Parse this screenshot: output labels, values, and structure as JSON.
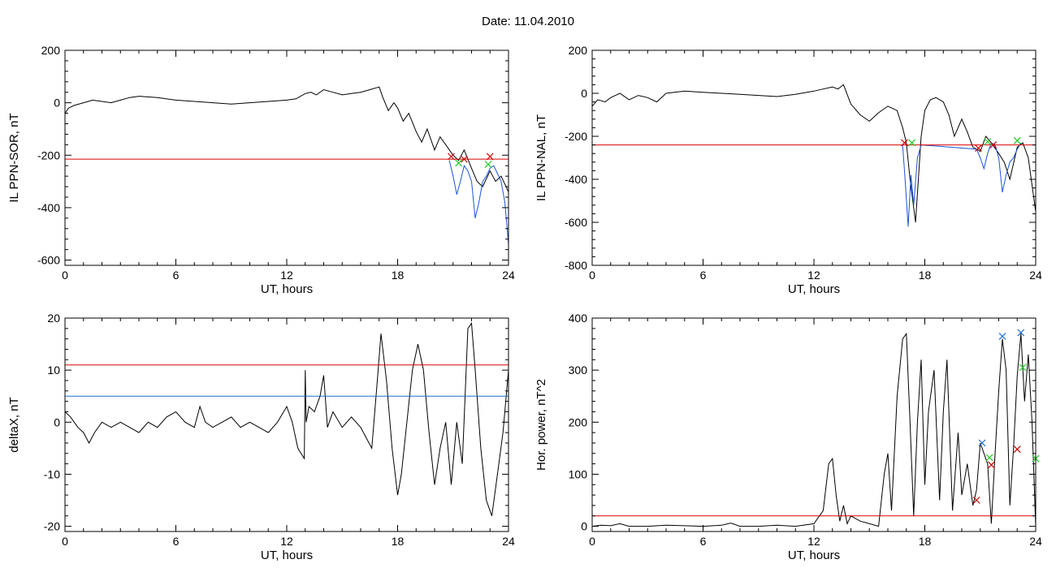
{
  "title": "Date:  11.04.2010",
  "chart_data": [
    {
      "type": "line",
      "xlabel": "UT, hours",
      "ylabel": "IL PPN-SOR, nT",
      "xlim": [
        0,
        24
      ],
      "ylim": [
        -620,
        200
      ],
      "xticks": [
        0,
        6,
        12,
        18,
        24
      ],
      "yticks": [
        -600,
        -400,
        -200,
        0,
        200
      ],
      "series": [
        {
          "color": "#000000",
          "x": [
            0,
            0.2,
            0.5,
            1,
            1.5,
            2,
            2.5,
            3,
            3.5,
            4,
            5,
            6,
            7,
            8,
            9,
            10,
            11,
            12,
            12.5,
            13,
            13.3,
            13.6,
            14,
            14.5,
            15,
            15.5,
            16,
            16.5,
            17,
            17.2,
            17.5,
            17.8,
            18,
            18.3,
            18.6,
            19,
            19.3,
            19.6,
            20,
            20.3,
            20.6,
            21,
            21.3,
            21.6,
            22,
            22.3,
            22.6,
            23,
            23.3,
            23.6,
            24
          ],
          "y": [
            -40,
            -20,
            -10,
            0,
            10,
            5,
            0,
            10,
            20,
            25,
            20,
            10,
            5,
            0,
            -5,
            0,
            5,
            10,
            15,
            35,
            40,
            30,
            50,
            40,
            30,
            35,
            40,
            50,
            60,
            20,
            -30,
            0,
            -20,
            -70,
            -40,
            -110,
            -150,
            -100,
            -180,
            -130,
            -160,
            -200,
            -220,
            -180,
            -250,
            -300,
            -320,
            -260,
            -300,
            -280,
            -340
          ]
        },
        {
          "color": "#1a55d6",
          "x": [
            20.8,
            21,
            21.2,
            21.4,
            21.6,
            21.8,
            22,
            22.2,
            22.4,
            22.6,
            22.8,
            23,
            23.2,
            23.4,
            23.6,
            23.8,
            24
          ],
          "y": [
            -220,
            -280,
            -350,
            -300,
            -240,
            -260,
            -300,
            -440,
            -380,
            -300,
            -280,
            -250,
            -240,
            -270,
            -300,
            -380,
            -540
          ]
        },
        {
          "color": "#dd0000",
          "x": [
            0,
            24
          ],
          "y": [
            -215,
            -215
          ]
        }
      ],
      "markers": [
        {
          "symbol": "x",
          "color": "#cc0000",
          "x": 20.9,
          "y": -205
        },
        {
          "symbol": "x",
          "color": "#22cc22",
          "x": 21.3,
          "y": -230
        },
        {
          "symbol": "x",
          "color": "#cc0000",
          "x": 21.6,
          "y": -215
        },
        {
          "symbol": "x",
          "color": "#cc0000",
          "x": 23.0,
          "y": -205
        },
        {
          "symbol": "x",
          "color": "#22cc22",
          "x": 22.9,
          "y": -235
        }
      ]
    },
    {
      "type": "line",
      "xlabel": "UT, hours",
      "ylabel": "IL PPN-NAL, nT",
      "xlim": [
        0,
        24
      ],
      "ylim": [
        -800,
        200
      ],
      "xticks": [
        0,
        6,
        12,
        18,
        24
      ],
      "yticks": [
        -800,
        -600,
        -400,
        -200,
        0,
        200
      ],
      "series": [
        {
          "color": "#000000",
          "x": [
            0,
            0.3,
            0.7,
            1,
            1.5,
            2,
            2.5,
            3,
            3.5,
            4,
            5,
            6,
            7,
            8,
            9,
            10,
            11,
            12,
            12.5,
            13,
            13.3,
            13.6,
            14,
            14.5,
            15,
            15.5,
            16,
            16.5,
            16.8,
            17,
            17.2,
            17.5,
            17.8,
            18,
            18.3,
            18.6,
            19,
            19.3,
            19.6,
            20,
            20.3,
            20.6,
            21,
            21.3,
            21.6,
            22,
            22.3,
            22.6,
            23,
            23.3,
            23.6,
            24
          ],
          "y": [
            -60,
            -30,
            -40,
            -20,
            0,
            -30,
            -10,
            -20,
            -40,
            0,
            10,
            5,
            0,
            -5,
            -10,
            -15,
            -5,
            10,
            20,
            30,
            20,
            40,
            -50,
            -100,
            -130,
            -90,
            -60,
            -80,
            -160,
            -230,
            -400,
            -600,
            -200,
            -80,
            -30,
            -20,
            -40,
            -100,
            -200,
            -120,
            -180,
            -250,
            -270,
            -200,
            -230,
            -280,
            -320,
            -400,
            -250,
            -230,
            -300,
            -550
          ]
        },
        {
          "color": "#1a55d6",
          "x": [
            16.8,
            16.95,
            17.1,
            17.25,
            17.4,
            17.6,
            17.8,
            20.8,
            21,
            21.2,
            21.4,
            21.6,
            21.8,
            22,
            22.2,
            22.4,
            22.6,
            22.8,
            23,
            23.2
          ],
          "y": [
            -240,
            -420,
            -620,
            -380,
            -520,
            -300,
            -240,
            -260,
            -300,
            -350,
            -280,
            -230,
            -240,
            -300,
            -460,
            -380,
            -320,
            -300,
            -260,
            -230
          ]
        },
        {
          "color": "#dd0000",
          "x": [
            0,
            24
          ],
          "y": [
            -240,
            -240
          ]
        }
      ],
      "markers": [
        {
          "symbol": "x",
          "color": "#cc0000",
          "x": 16.9,
          "y": -230
        },
        {
          "symbol": "x",
          "color": "#22cc22",
          "x": 17.3,
          "y": -230
        },
        {
          "symbol": "x",
          "color": "#cc0000",
          "x": 20.9,
          "y": -255
        },
        {
          "symbol": "x",
          "color": "#22cc22",
          "x": 21.4,
          "y": -225
        },
        {
          "symbol": "x",
          "color": "#cc0000",
          "x": 21.7,
          "y": -240
        },
        {
          "symbol": "x",
          "color": "#22cc22",
          "x": 23.0,
          "y": -220
        }
      ]
    },
    {
      "type": "line",
      "xlabel": "UT, hours",
      "ylabel": "deltaX, nT",
      "xlim": [
        0,
        24
      ],
      "ylim": [
        -21,
        20
      ],
      "xticks": [
        0,
        6,
        12,
        18,
        24
      ],
      "yticks": [
        -20,
        -10,
        0,
        10,
        20
      ],
      "series": [
        {
          "color": "#000000",
          "x": [
            0,
            0.3,
            0.7,
            1,
            1.3,
            1.6,
            2,
            2.5,
            3,
            3.5,
            4,
            4.5,
            5,
            5.5,
            6,
            6.5,
            7,
            7.3,
            7.6,
            8,
            8.5,
            9,
            9.5,
            10,
            10.5,
            11,
            11.5,
            12,
            12.3,
            12.6,
            12.95,
            13,
            13.05,
            13.2,
            13.5,
            13.8,
            14,
            14.2,
            14.5,
            15,
            15.5,
            16,
            16.3,
            16.6,
            16.9,
            17.1,
            17.4,
            17.7,
            18,
            18.2,
            18.5,
            18.8,
            19.1,
            19.4,
            19.7,
            20,
            20.3,
            20.6,
            20.9,
            21.2,
            21.5,
            21.8,
            22,
            22.2,
            22.5,
            22.8,
            23.1,
            23.4,
            23.7,
            24
          ],
          "y": [
            2,
            1,
            -1,
            -2,
            -4,
            -2,
            0,
            -1,
            0,
            -1,
            -2,
            0,
            -1,
            1,
            2,
            0,
            -1,
            3,
            0,
            -1,
            0,
            1,
            -1,
            0,
            -1,
            -2,
            0,
            3,
            0,
            -5,
            -7,
            10,
            0,
            3,
            2,
            5,
            9,
            -1,
            2,
            -1,
            1,
            -1,
            -3,
            -5,
            8,
            17,
            8,
            -5,
            -14,
            -10,
            0,
            10,
            15,
            10,
            -2,
            -12,
            -5,
            0,
            -12,
            0,
            -8,
            18,
            19,
            10,
            -5,
            -15,
            -18,
            -10,
            -2,
            10
          ]
        },
        {
          "color": "#dd0000",
          "x": [
            0,
            24
          ],
          "y": [
            11,
            11
          ]
        },
        {
          "color": "#1f6fd0",
          "x": [
            0,
            24
          ],
          "y": [
            5,
            5
          ]
        }
      ],
      "markers": []
    },
    {
      "type": "line",
      "xlabel": "UT, hours",
      "ylabel": "Hor. power, nT^2",
      "xlim": [
        0,
        24
      ],
      "ylim": [
        -10,
        400
      ],
      "xticks": [
        0,
        6,
        12,
        18,
        24
      ],
      "yticks": [
        0,
        100,
        200,
        300,
        400
      ],
      "series": [
        {
          "color": "#000000",
          "x": [
            0,
            0.5,
            1,
            1.5,
            2,
            3,
            4,
            5,
            6,
            7,
            7.5,
            8,
            9,
            10,
            11,
            12,
            12.5,
            12.8,
            13,
            13.2,
            13.4,
            13.6,
            13.8,
            14,
            14.5,
            15,
            15.5,
            15.8,
            16,
            16.2,
            16.5,
            16.8,
            17,
            17.2,
            17.4,
            17.6,
            17.8,
            18,
            18.2,
            18.5,
            18.8,
            19,
            19.2,
            19.5,
            19.8,
            20,
            20.3,
            20.6,
            20.8,
            21,
            21.2,
            21.4,
            21.6,
            21.8,
            22,
            22.2,
            22.4,
            22.6,
            22.8,
            23,
            23.2,
            23.4,
            23.6,
            23.8,
            24
          ],
          "y": [
            0,
            2,
            1,
            5,
            0,
            0,
            2,
            1,
            0,
            2,
            6,
            0,
            0,
            2,
            0,
            5,
            30,
            120,
            130,
            60,
            10,
            40,
            5,
            20,
            10,
            5,
            0,
            100,
            140,
            30,
            250,
            360,
            370,
            200,
            20,
            200,
            320,
            80,
            220,
            300,
            50,
            220,
            320,
            30,
            180,
            60,
            120,
            40,
            70,
            160,
            140,
            120,
            5,
            140,
            260,
            360,
            300,
            40,
            150,
            290,
            370,
            240,
            330,
            200,
            0
          ]
        },
        {
          "color": "#dd0000",
          "x": [
            0,
            24
          ],
          "y": [
            20,
            20
          ]
        }
      ],
      "markers": [
        {
          "symbol": "x",
          "color": "#cc0000",
          "x": 20.8,
          "y": 50
        },
        {
          "symbol": "x",
          "color": "#1f6fd0",
          "x": 21.1,
          "y": 160
        },
        {
          "symbol": "x",
          "color": "#22cc22",
          "x": 21.5,
          "y": 132
        },
        {
          "symbol": "x",
          "color": "#cc0000",
          "x": 21.6,
          "y": 118
        },
        {
          "symbol": "x",
          "color": "#1f6fd0",
          "x": 22.2,
          "y": 365
        },
        {
          "symbol": "x",
          "color": "#cc0000",
          "x": 23.0,
          "y": 148
        },
        {
          "symbol": "x",
          "color": "#1f6fd0",
          "x": 23.2,
          "y": 372
        },
        {
          "symbol": "x",
          "color": "#22cc22",
          "x": 23.3,
          "y": 305
        },
        {
          "symbol": "x",
          "color": "#22cc22",
          "x": 24.0,
          "y": 130
        }
      ]
    }
  ]
}
